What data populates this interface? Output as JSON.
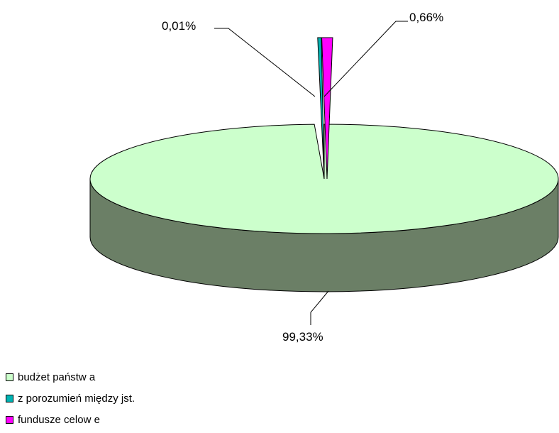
{
  "chart_data": {
    "type": "pie",
    "title": "",
    "categories": [
      "budżet państw a",
      "z porozumień między jst.",
      "fundusze celow e"
    ],
    "values": [
      99.33,
      0.01,
      0.66
    ],
    "data_labels": [
      "99,33%",
      "0,01%",
      "0,66%"
    ],
    "colors": [
      "#CCFFCC",
      "#00B4B4",
      "#FF00FF"
    ],
    "side_colors": [
      "#6B7F66",
      "#007A7A",
      "#A000A0"
    ],
    "style": "3d",
    "legend_position": "bottom-left"
  }
}
